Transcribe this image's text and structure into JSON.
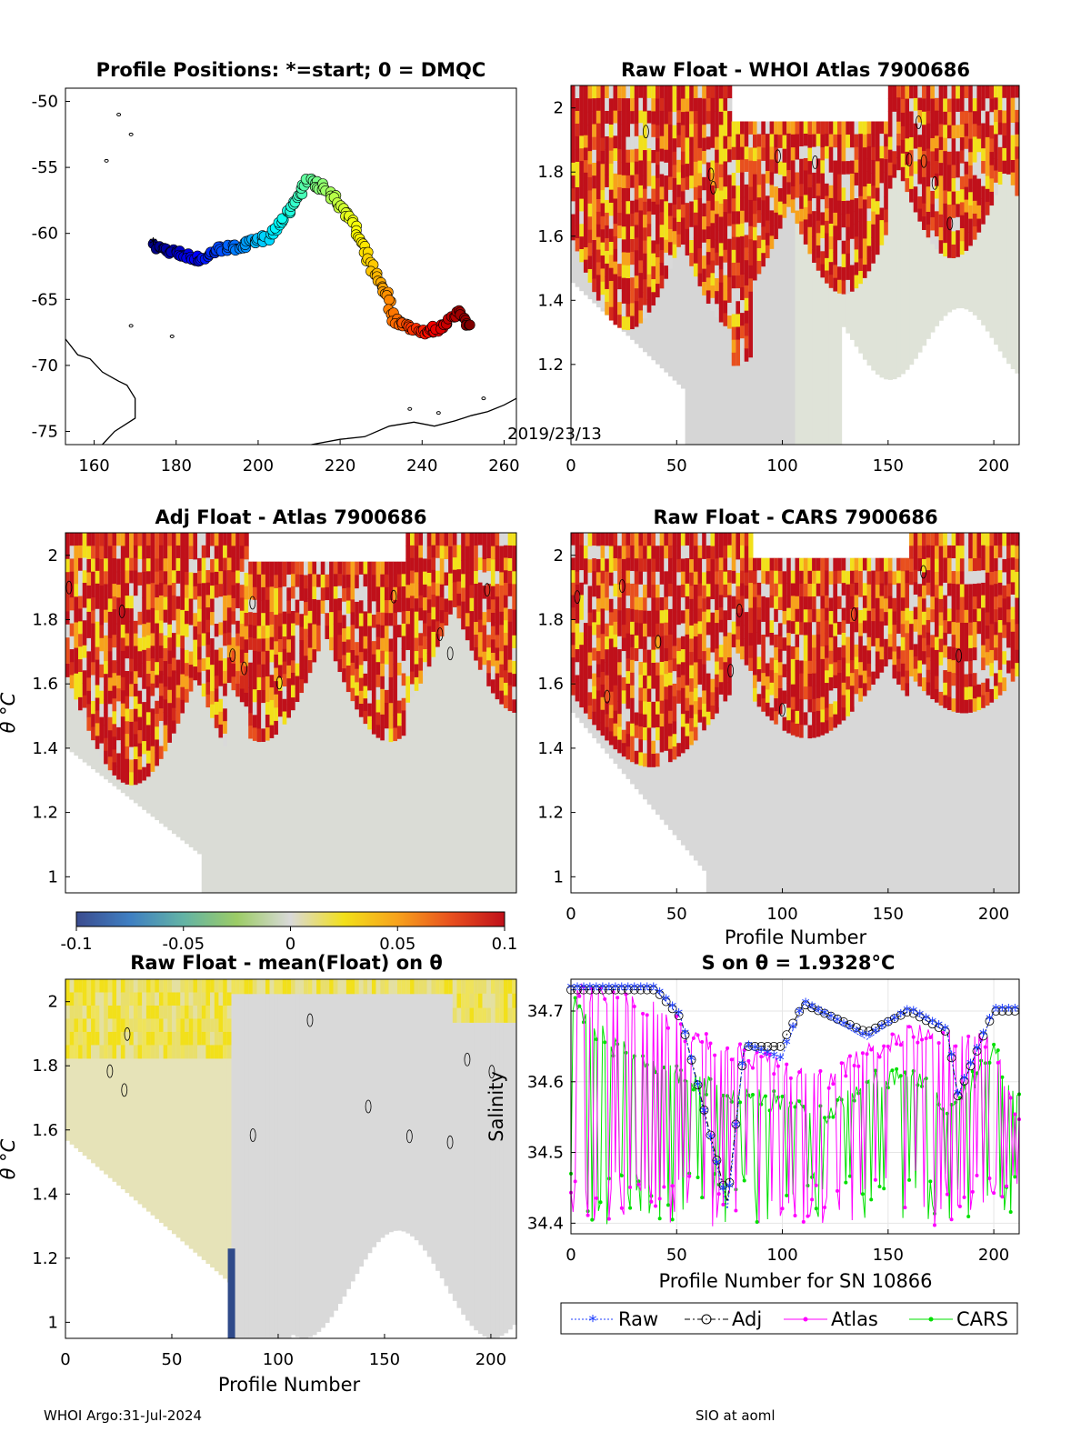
{
  "footer": {
    "left": "WHOI Argo:31-Jul-2024",
    "right": "SIO at aoml"
  },
  "colormap": {
    "colors": [
      "#3b4c8f",
      "#3f7fc2",
      "#63b3a5",
      "#9ccc66",
      "#d9d9d9",
      "#f2e01a",
      "#f7a21c",
      "#e8501e",
      "#c0101a"
    ],
    "ticks": [
      "-0.1",
      "-0.05",
      "0",
      "0.05",
      "0.1"
    ],
    "range": [
      -0.1,
      0.1
    ]
  },
  "chart_data": [
    {
      "id": "map",
      "type": "scatter",
      "title": "Profile Positions: *=start; 0 = DMQC",
      "xlim": [
        153,
        263
      ],
      "ylim": [
        -76,
        -49
      ],
      "xticks": [
        "160",
        "180",
        "200",
        "220",
        "240",
        "260"
      ],
      "yticks": [
        "-50",
        "-55",
        "-60",
        "-65",
        "-70",
        "-75"
      ],
      "annotation": "2019/23/13",
      "track_waypoints": [
        [
          175,
          -61
        ],
        [
          180,
          -61.5
        ],
        [
          186,
          -62
        ],
        [
          190,
          -61.2
        ],
        [
          196,
          -61
        ],
        [
          203,
          -60.2
        ],
        [
          208,
          -58
        ],
        [
          212,
          -56
        ],
        [
          216,
          -56.5
        ],
        [
          222,
          -58.5
        ],
        [
          226,
          -61.5
        ],
        [
          229,
          -63.5
        ],
        [
          232,
          -65
        ],
        [
          233,
          -66.5
        ],
        [
          236,
          -67
        ],
        [
          241,
          -67.5
        ],
        [
          245,
          -67
        ],
        [
          249,
          -66
        ],
        [
          252,
          -67
        ]
      ],
      "n_profiles": 212
    },
    {
      "id": "rawAtlas",
      "type": "heatmap",
      "title": "Raw Float - WHOI Atlas  7900686",
      "xlim": [
        0,
        212
      ],
      "ylim": [
        0.95,
        2.07
      ],
      "xticks": [
        "0",
        "50",
        "100",
        "150",
        "200"
      ],
      "yticks": [
        "2",
        "1.8",
        "1.6",
        "1.4",
        "1.2"
      ]
    },
    {
      "id": "adjAtlas",
      "type": "heatmap",
      "title": "Adj Float - Atlas  7900686",
      "xlim": [
        0,
        212
      ],
      "ylim": [
        0.95,
        2.07
      ],
      "yticks": [
        "2",
        "1.8",
        "1.6",
        "1.4",
        "1.2",
        "1"
      ],
      "ylabel": "θ °C"
    },
    {
      "id": "rawCars",
      "type": "heatmap",
      "title": "Raw Float - CARS  7900686",
      "xlim": [
        0,
        212
      ],
      "ylim": [
        0.95,
        2.07
      ],
      "xticks": [
        "0",
        "50",
        "100",
        "150",
        "200"
      ],
      "yticks": [
        "2",
        "1.8",
        "1.6",
        "1.4",
        "1.2",
        "1"
      ],
      "xlabel": "Profile Number"
    },
    {
      "id": "meanFloat",
      "type": "heatmap",
      "title": "Raw Float - mean(Float) on θ",
      "xlim": [
        0,
        212
      ],
      "ylim": [
        0.95,
        2.07
      ],
      "xticks": [
        "0",
        "50",
        "100",
        "150",
        "200"
      ],
      "yticks": [
        "2",
        "1.8",
        "1.6",
        "1.4",
        "1.2",
        "1"
      ],
      "xlabel": "Profile Number",
      "ylabel": "θ °C"
    },
    {
      "id": "salinity",
      "type": "line",
      "title": "S on θ = 1.9328°C",
      "xlim": [
        0,
        212
      ],
      "ylim": [
        34.385,
        34.745
      ],
      "xticks": [
        "0",
        "50",
        "100",
        "150",
        "200"
      ],
      "yticks": [
        "34.7",
        "34.6",
        "34.5",
        "34.4"
      ],
      "xlabel": "Profile Number for SN 10866",
      "ylabel": "Salinity",
      "legend": "bottom",
      "series": [
        {
          "name": "Raw",
          "color": "#1f3fff",
          "x": [
            0,
            20,
            40,
            52,
            74,
            82,
            99,
            110,
            140,
            160,
            178,
            183,
            200,
            212
          ],
          "values": [
            34.73,
            34.73,
            34.73,
            34.69,
            34.42,
            34.65,
            34.63,
            34.71,
            34.66,
            34.7,
            34.67,
            34.58,
            34.7,
            34.7
          ]
        },
        {
          "name": "Adj",
          "color": "#000000",
          "x": [
            0,
            20,
            40,
            52,
            74,
            82,
            99,
            110,
            140,
            160,
            178,
            183,
            200,
            212
          ],
          "values": [
            34.73,
            34.73,
            34.73,
            34.69,
            34.43,
            34.65,
            34.65,
            34.71,
            34.67,
            34.7,
            34.67,
            34.58,
            34.7,
            34.7
          ]
        },
        {
          "name": "Atlas",
          "color": "#ff00ff",
          "x": [
            0,
            20,
            40,
            60,
            80,
            100,
            120,
            140,
            160,
            180,
            200,
            212
          ],
          "values": [
            34.73,
            34.72,
            34.7,
            34.66,
            34.64,
            34.62,
            34.6,
            34.64,
            34.67,
            34.66,
            34.65,
            34.55
          ]
        },
        {
          "name": "CARS",
          "color": "#00e000",
          "x": [
            0,
            20,
            40,
            60,
            80,
            100,
            120,
            140,
            160,
            180,
            200,
            212
          ],
          "values": [
            34.71,
            34.65,
            34.62,
            34.6,
            34.58,
            34.57,
            34.55,
            34.6,
            34.61,
            34.56,
            34.64,
            34.58
          ]
        }
      ]
    }
  ]
}
